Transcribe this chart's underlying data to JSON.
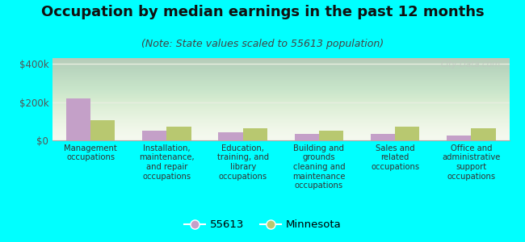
{
  "title": "Occupation by median earnings in the past 12 months",
  "subtitle": "(Note: State values scaled to 55613 population)",
  "categories": [
    "Management\noccupations",
    "Installation,\nmaintenance,\nand repair\noccupations",
    "Education,\ntraining, and\nlibrary\noccupations",
    "Building and\ngrounds\ncleaning and\nmaintenance\noccupations",
    "Sales and\nrelated\noccupations",
    "Office and\nadministrative\nsupport\noccupations"
  ],
  "values_55613": [
    220000,
    52000,
    42000,
    35000,
    32000,
    25000
  ],
  "values_minnesota": [
    105000,
    73000,
    65000,
    52000,
    70000,
    62000
  ],
  "color_55613": "#c4a0c8",
  "color_minnesota": "#b8c870",
  "bar_width": 0.32,
  "ylim": [
    0,
    430000
  ],
  "yticks": [
    0,
    200000,
    400000
  ],
  "ytick_labels": [
    "$0",
    "$200k",
    "$400k"
  ],
  "background_color": "#00ffff",
  "watermark": "City-Data.com",
  "legend_label_55613": "55613",
  "legend_label_minnesota": "Minnesota",
  "title_fontsize": 13,
  "subtitle_fontsize": 9,
  "tick_fontsize": 8.5,
  "category_fontsize": 7.2,
  "grid_color": "#e8eee0",
  "spine_color": "#aaaaaa"
}
